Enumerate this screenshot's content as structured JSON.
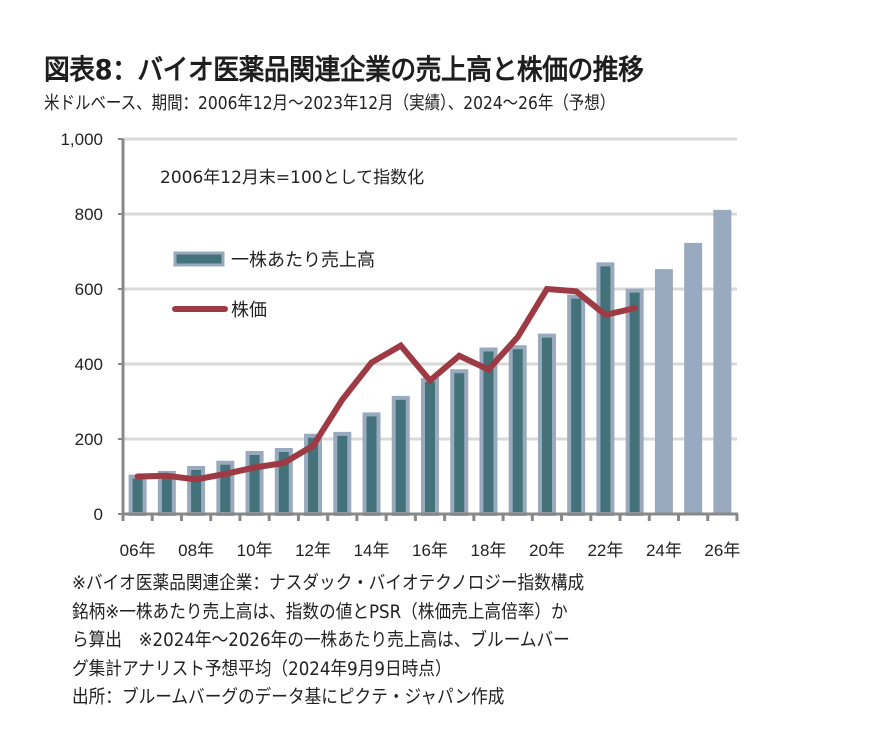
{
  "header": {
    "title": "図表8：バイオ医薬品関連企業の売上高と株価の推移",
    "subtitle": "米ドルベース、期間：2006年12月～2023年12月（実績）、2024～26年（予想）"
  },
  "colors": {
    "bar_actual_fill": "#44727a",
    "bar_actual_border": "#9aaabe",
    "bar_forecast_fill": "#9aaabe",
    "line": "#9e3a44",
    "grid": "#d9d9d9",
    "axis": "#888888"
  },
  "chart_data": {
    "type": "bar+line",
    "title": "図表8：バイオ医薬品関連企業の売上高と株価の推移",
    "annotation": "2006年12月末=100として指数化",
    "xlabel": "",
    "ylabel": "",
    "ylim": [
      0,
      1000
    ],
    "yticks": [
      0,
      200,
      400,
      600,
      800,
      1000
    ],
    "ytick_labels": [
      "0",
      "200",
      "400",
      "600",
      "800",
      "1,000"
    ],
    "grid": true,
    "legend_position": "top-left",
    "categories": [
      "2006",
      "2007",
      "2008",
      "2009",
      "2010",
      "2011",
      "2012",
      "2013",
      "2014",
      "2015",
      "2016",
      "2017",
      "2018",
      "2019",
      "2020",
      "2021",
      "2022",
      "2023",
      "2024",
      "2025",
      "2026"
    ],
    "xtick_labels": [
      "06年",
      "08年",
      "10年",
      "12年",
      "14年",
      "16年",
      "18年",
      "20年",
      "22年",
      "24年",
      "26年"
    ],
    "xtick_label_indices": [
      0,
      2,
      4,
      6,
      8,
      10,
      12,
      14,
      16,
      18,
      20
    ],
    "series": [
      {
        "name": "一株あたり売上高",
        "type": "bar",
        "values": [
          105,
          115,
          128,
          142,
          168,
          176,
          214,
          219,
          271,
          315,
          363,
          386,
          444,
          450,
          481,
          585,
          671,
          601,
          653,
          723,
          811
        ],
        "forecast_from_index": 18
      },
      {
        "name": "株価",
        "type": "line",
        "values": [
          100,
          102,
          92,
          107,
          124,
          136,
          182,
          305,
          404,
          449,
          356,
          422,
          385,
          472,
          600,
          594,
          531,
          549,
          null,
          null,
          null
        ]
      }
    ]
  },
  "footnote": {
    "lines": [
      "※バイオ医薬品関連企業：ナスダック・バイオテクノロジー指数構成",
      "銘柄※一株あたり売上高は、指数の値とPSR（株価売上高倍率）か",
      "ら算出　※2024年～2026年の一株あたり売上高は、ブルームバー",
      "グ集計アナリスト予想平均（2024年9月9日時点）",
      "出所：ブルームバーグのデータ基にピクテ・ジャパン作成"
    ]
  }
}
